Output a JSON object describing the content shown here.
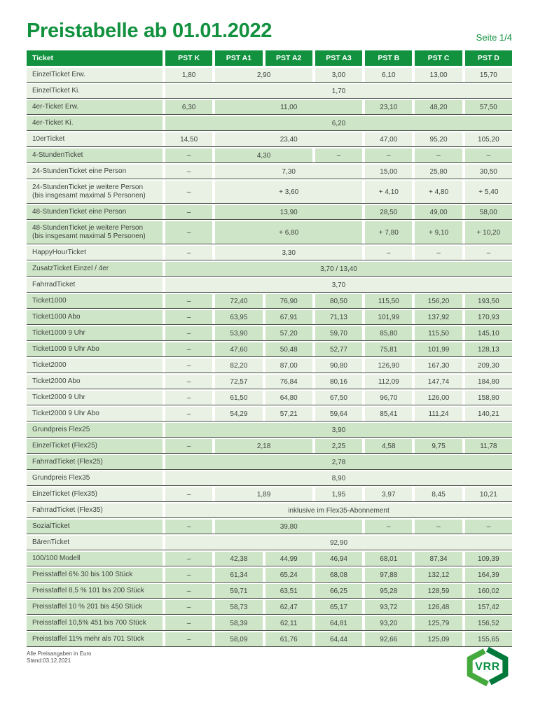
{
  "header": {
    "title": "Preistabelle ab 01.01.2022",
    "page": "Seite 1/4"
  },
  "colors": {
    "accent_green": "#12913f",
    "row_light": "#e9f1e4",
    "row_medium": "#cfe5c8",
    "separator_line": "#4b544b",
    "logo_left_green": "#44aa3d",
    "logo_right_green": "#00793a",
    "logo_text_green": "#0a9145"
  },
  "table": {
    "columns": [
      "Ticket",
      "PST K",
      "PST A1",
      "PST A2",
      "PST A3",
      "PST B",
      "PST C",
      "PST D"
    ],
    "rows": [
      {
        "label": "EinzelTicket Erw.",
        "shade": "light",
        "cells": [
          [
            "1,80",
            1
          ],
          [
            "2,90",
            2
          ],
          [
            "3,00",
            1
          ],
          [
            "6,10",
            1
          ],
          [
            "13,00",
            1
          ],
          [
            "15,70",
            1
          ]
        ]
      },
      {
        "label": "EinzelTicket Ki.",
        "shade": "light",
        "cells": [
          [
            "1,70",
            7
          ]
        ]
      },
      {
        "label": "4er-Ticket Erw.",
        "shade": "medium",
        "cells": [
          [
            "6,30",
            1
          ],
          [
            "11,00",
            3
          ],
          [
            "23,10",
            1
          ],
          [
            "48,20",
            1
          ],
          [
            "57,50",
            1
          ]
        ]
      },
      {
        "label": "4er-Ticket Ki.",
        "shade": "medium",
        "cells": [
          [
            "6,20",
            7
          ]
        ]
      },
      {
        "label": "10erTicket",
        "shade": "light",
        "cells": [
          [
            "14,50",
            1
          ],
          [
            "23,40",
            3
          ],
          [
            "47,00",
            1
          ],
          [
            "95,20",
            1
          ],
          [
            "105,20",
            1
          ]
        ]
      },
      {
        "label": "4-StundenTicket",
        "shade": "medium",
        "cells": [
          [
            "–",
            1
          ],
          [
            "4,30",
            2
          ],
          [
            "–",
            1
          ],
          [
            "–",
            1
          ],
          [
            "–",
            1
          ],
          [
            "–",
            1
          ]
        ]
      },
      {
        "label": "24-StundenTicket eine Person",
        "shade": "light",
        "cells": [
          [
            "–",
            1
          ],
          [
            "7,30",
            3
          ],
          [
            "15,00",
            1
          ],
          [
            "25,80",
            1
          ],
          [
            "30,50",
            1
          ]
        ]
      },
      {
        "label": "24-StundenTicket je weitere Person",
        "label2": "(bis insgesamt maximal 5 Personen)",
        "shade": "light",
        "cells": [
          [
            "–",
            1
          ],
          [
            "+ 3,60",
            3
          ],
          [
            "+ 4,10",
            1
          ],
          [
            "+ 4,80",
            1
          ],
          [
            "+ 5,40",
            1
          ]
        ]
      },
      {
        "label": "48-StundenTicket eine Person",
        "shade": "medium",
        "cells": [
          [
            "–",
            1
          ],
          [
            "13,90",
            3
          ],
          [
            "28,50",
            1
          ],
          [
            "49,00",
            1
          ],
          [
            "58,00",
            1
          ]
        ]
      },
      {
        "label": "48-StundenTicket je weitere Person",
        "label2": "(bis insgesamt maximal 5 Personen)",
        "shade": "medium",
        "cells": [
          [
            "–",
            1
          ],
          [
            "+ 6,80",
            3
          ],
          [
            "+ 7,80",
            1
          ],
          [
            "+ 9,10",
            1
          ],
          [
            "+ 10,20",
            1
          ]
        ]
      },
      {
        "label": "HappyHourTicket",
        "shade": "light",
        "cells": [
          [
            "–",
            1
          ],
          [
            "3,30",
            3
          ],
          [
            "–",
            1
          ],
          [
            "–",
            1
          ],
          [
            "–",
            1
          ]
        ]
      },
      {
        "label": "ZusatzTicket Einzel / 4er",
        "shade": "medium",
        "cells": [
          [
            "3,70 / 13,40",
            7
          ]
        ]
      },
      {
        "label": "FahrradTicket",
        "shade": "light",
        "cells": [
          [
            "3,70",
            7
          ]
        ]
      },
      {
        "label": "Ticket1000",
        "shade": "medium",
        "cells": [
          [
            "–",
            1
          ],
          [
            "72,40",
            1
          ],
          [
            "76,90",
            1
          ],
          [
            "80,50",
            1
          ],
          [
            "115,50",
            1
          ],
          [
            "156,20",
            1
          ],
          [
            "193,50",
            1
          ]
        ]
      },
      {
        "label": "Ticket1000 Abo",
        "shade": "medium",
        "cells": [
          [
            "–",
            1
          ],
          [
            "63,95",
            1
          ],
          [
            "67,91",
            1
          ],
          [
            "71,13",
            1
          ],
          [
            "101,99",
            1
          ],
          [
            "137,92",
            1
          ],
          [
            "170,93",
            1
          ]
        ]
      },
      {
        "label": "Ticket1000 9 Uhr",
        "shade": "medium",
        "cells": [
          [
            "–",
            1
          ],
          [
            "53,90",
            1
          ],
          [
            "57,20",
            1
          ],
          [
            "59,70",
            1
          ],
          [
            "85,80",
            1
          ],
          [
            "115,50",
            1
          ],
          [
            "145,10",
            1
          ]
        ]
      },
      {
        "label": "Ticket1000 9 Uhr Abo",
        "shade": "medium",
        "cells": [
          [
            "–",
            1
          ],
          [
            "47,60",
            1
          ],
          [
            "50,48",
            1
          ],
          [
            "52,77",
            1
          ],
          [
            "75,81",
            1
          ],
          [
            "101,99",
            1
          ],
          [
            "128,13",
            1
          ]
        ]
      },
      {
        "label": "Ticket2000",
        "shade": "light",
        "cells": [
          [
            "–",
            1
          ],
          [
            "82,20",
            1
          ],
          [
            "87,00",
            1
          ],
          [
            "90,80",
            1
          ],
          [
            "126,90",
            1
          ],
          [
            "167,30",
            1
          ],
          [
            "209,30",
            1
          ]
        ]
      },
      {
        "label": "Ticket2000 Abo",
        "shade": "light",
        "cells": [
          [
            "–",
            1
          ],
          [
            "72,57",
            1
          ],
          [
            "76,84",
            1
          ],
          [
            "80,16",
            1
          ],
          [
            "112,09",
            1
          ],
          [
            "147,74",
            1
          ],
          [
            "184,80",
            1
          ]
        ]
      },
      {
        "label": "Ticket2000 9 Uhr",
        "shade": "light",
        "cells": [
          [
            "–",
            1
          ],
          [
            "61,50",
            1
          ],
          [
            "64,80",
            1
          ],
          [
            "67,50",
            1
          ],
          [
            "96,70",
            1
          ],
          [
            "126,00",
            1
          ],
          [
            "158,80",
            1
          ]
        ]
      },
      {
        "label": "Ticket2000 9 Uhr Abo",
        "shade": "light",
        "cells": [
          [
            "–",
            1
          ],
          [
            "54,29",
            1
          ],
          [
            "57,21",
            1
          ],
          [
            "59,64",
            1
          ],
          [
            "85,41",
            1
          ],
          [
            "111,24",
            1
          ],
          [
            "140,21",
            1
          ]
        ]
      },
      {
        "label": "Grundpreis Flex25",
        "shade": "medium",
        "cells": [
          [
            "3,90",
            7
          ]
        ]
      },
      {
        "label": "EinzelTicket (Flex25)",
        "shade": "medium",
        "cells": [
          [
            "–",
            1
          ],
          [
            "2,18",
            2
          ],
          [
            "2,25",
            1
          ],
          [
            "4,58",
            1
          ],
          [
            "9,75",
            1
          ],
          [
            "11,78",
            1
          ]
        ]
      },
      {
        "label": "FahrradTicket (Flex25)",
        "shade": "medium",
        "cells": [
          [
            "2,78",
            7
          ]
        ]
      },
      {
        "label": "Grundpreis Flex35",
        "shade": "light",
        "cells": [
          [
            "8,90",
            7
          ]
        ]
      },
      {
        "label": "EinzelTicket (Flex35)",
        "shade": "light",
        "cells": [
          [
            "–",
            1
          ],
          [
            "1,89",
            2
          ],
          [
            "1,95",
            1
          ],
          [
            "3,97",
            1
          ],
          [
            "8,45",
            1
          ],
          [
            "10,21",
            1
          ]
        ]
      },
      {
        "label": "FahrradTicket (Flex35)",
        "shade": "light",
        "cells": [
          [
            "inklusive im Flex35-Abonnement",
            7
          ]
        ]
      },
      {
        "label": "SozialTicket",
        "shade": "medium",
        "cells": [
          [
            "–",
            1
          ],
          [
            "39,80",
            3
          ],
          [
            "–",
            1
          ],
          [
            "–",
            1
          ],
          [
            "–",
            1
          ]
        ]
      },
      {
        "label": "BärenTicket",
        "shade": "light",
        "cells": [
          [
            "92,90",
            7
          ]
        ]
      },
      {
        "label": "100/100 Modell",
        "shade": "medium",
        "cells": [
          [
            "–",
            1
          ],
          [
            "42,38",
            1
          ],
          [
            "44,99",
            1
          ],
          [
            "46,94",
            1
          ],
          [
            "68,01",
            1
          ],
          [
            "87,34",
            1
          ],
          [
            "109,39",
            1
          ]
        ]
      },
      {
        "label": "Preisstaffel 6% 30 bis 100 Stück",
        "shade": "medium",
        "cells": [
          [
            "–",
            1
          ],
          [
            "61,34",
            1
          ],
          [
            "65,24",
            1
          ],
          [
            "68,08",
            1
          ],
          [
            "97,88",
            1
          ],
          [
            "132,12",
            1
          ],
          [
            "164,39",
            1
          ]
        ]
      },
      {
        "label": "Preisstaffel 8,5 % 101 bis 200 Stück",
        "shade": "medium",
        "cells": [
          [
            "–",
            1
          ],
          [
            "59,71",
            1
          ],
          [
            "63,51",
            1
          ],
          [
            "66,25",
            1
          ],
          [
            "95,28",
            1
          ],
          [
            "128,59",
            1
          ],
          [
            "160,02",
            1
          ]
        ]
      },
      {
        "label": "Preisstaffel 10 % 201 bis 450 Stück",
        "shade": "medium",
        "cells": [
          [
            "–",
            1
          ],
          [
            "58,73",
            1
          ],
          [
            "62,47",
            1
          ],
          [
            "65,17",
            1
          ],
          [
            "93,72",
            1
          ],
          [
            "126,48",
            1
          ],
          [
            "157,42",
            1
          ]
        ]
      },
      {
        "label": "Preisstaffel 10,5% 451 bis 700 Stück",
        "shade": "medium",
        "cells": [
          [
            "–",
            1
          ],
          [
            "58,39",
            1
          ],
          [
            "62,11",
            1
          ],
          [
            "64,81",
            1
          ],
          [
            "93,20",
            1
          ],
          [
            "125,79",
            1
          ],
          [
            "156,52",
            1
          ]
        ]
      },
      {
        "label": "Preisstaffel 11% mehr als 701 Stück",
        "shade": "medium",
        "cells": [
          [
            "–",
            1
          ],
          [
            "58,09",
            1
          ],
          [
            "61,76",
            1
          ],
          [
            "64,44",
            1
          ],
          [
            "92,66",
            1
          ],
          [
            "125,09",
            1
          ],
          [
            "155,65",
            1
          ]
        ]
      }
    ]
  },
  "footnote": {
    "line1": "Alle Preisangaben in Euro",
    "line2": "Stand:03.12.2021"
  },
  "logo": {
    "text": "VRR"
  }
}
